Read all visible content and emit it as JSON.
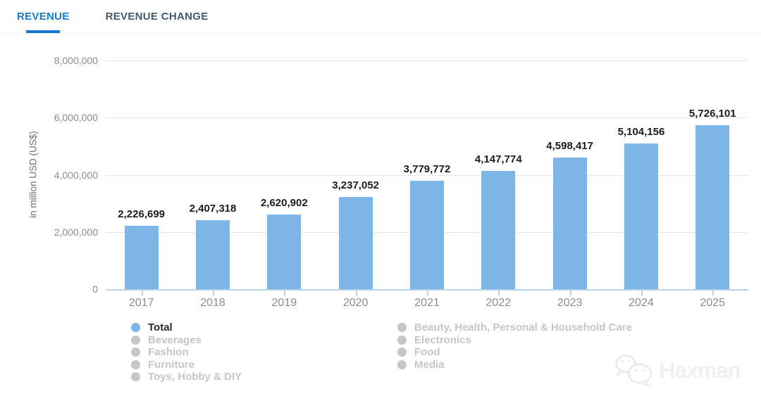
{
  "tabs": [
    {
      "label": "REVENUE",
      "active": true
    },
    {
      "label": "REVENUE CHANGE",
      "active": false
    }
  ],
  "chart_data": {
    "type": "bar",
    "categories": [
      "2017",
      "2018",
      "2019",
      "2020",
      "2021",
      "2022",
      "2023",
      "2024",
      "2025"
    ],
    "series": [
      {
        "name": "Total",
        "values": [
          2226699,
          2407318,
          2620902,
          3237052,
          3779772,
          4147774,
          4598417,
          5104156,
          5726101
        ]
      }
    ],
    "value_labels": [
      "2,226,699",
      "2,407,318",
      "2,620,902",
      "3,237,052",
      "3,779,772",
      "4,147,774",
      "4,598,417",
      "5,104,156",
      "5,726,101"
    ],
    "title": "",
    "xlabel": "",
    "ylabel": "in million USD (US$)",
    "ylim": [
      0,
      8000000
    ],
    "yticks": [
      0,
      2000000,
      4000000,
      6000000,
      8000000
    ],
    "ytick_labels": [
      "0",
      "2,000,000",
      "4,000,000",
      "6,000,000",
      "8,000,000"
    ],
    "grid": true,
    "legend_position": "bottom",
    "bar_color": "#7cb5e6"
  },
  "legend": {
    "columns": [
      [
        {
          "label": "Total",
          "active": true
        },
        {
          "label": "Beverages",
          "active": false
        },
        {
          "label": "Fashion",
          "active": false
        },
        {
          "label": "Furniture",
          "active": false
        },
        {
          "label": "Toys, Hobby & DIY",
          "active": false
        }
      ],
      [
        {
          "label": "Beauty, Health, Personal & Household Care",
          "active": false
        },
        {
          "label": "Electronics",
          "active": false
        },
        {
          "label": "Food",
          "active": false
        },
        {
          "label": "Media",
          "active": false
        }
      ]
    ],
    "active_dot_color": "#7cb5e6",
    "active_text_color": "#2b2b2b",
    "inactive_color": "#c6c6c6"
  },
  "watermark": {
    "text": "Haxman"
  },
  "colors": {
    "accent_blue": "#1878d0",
    "tab_inactive": "#46586b",
    "gridline": "#e8e8e8",
    "axis_line": "#b7d3ea"
  }
}
